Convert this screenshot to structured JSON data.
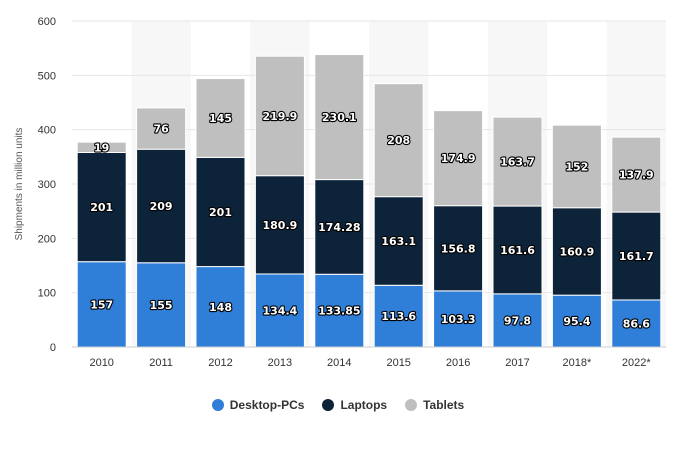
{
  "chart_data": {
    "type": "bar",
    "stacked": true,
    "categories": [
      "2010",
      "2011",
      "2012",
      "2013",
      "2014",
      "2015",
      "2016",
      "2017",
      "2018*",
      "2022*"
    ],
    "series": [
      {
        "name": "Desktop-PCs",
        "color": "#2f7ed8",
        "values": [
          157,
          155,
          148,
          134.4,
          133.85,
          113.6,
          103.3,
          97.8,
          95.4,
          86.6
        ]
      },
      {
        "name": "Laptops",
        "color": "#0d233a",
        "values": [
          201,
          209,
          201,
          180.9,
          174.28,
          163.1,
          156.8,
          161.6,
          160.9,
          161.7
        ]
      },
      {
        "name": "Tablets",
        "color": "#bfbfbf",
        "values": [
          19,
          76,
          145,
          219.9,
          230.1,
          208,
          174.9,
          163.7,
          152,
          137.9
        ]
      }
    ],
    "ylabel": "Shipments in million units",
    "ylim": [
      0,
      600
    ],
    "yticks": [
      0,
      100,
      200,
      300,
      400,
      500,
      600
    ],
    "grid": true,
    "legend_position": "bottom"
  }
}
